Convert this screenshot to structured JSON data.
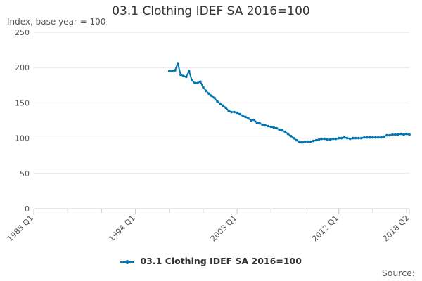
{
  "page": {
    "title": "03.1 Clothing IDEF SA 2016=100",
    "source_label": "Source:"
  },
  "colors": {
    "series": "#0075b0",
    "grid": "#e6e6e6",
    "axis": "#cccccc",
    "text": "#555555"
  },
  "chart_data": {
    "type": "line",
    "title": "03.1 Clothing IDEF SA 2016=100",
    "ylabel": "Index, base year = 100",
    "xlabel": "",
    "ylim": [
      0,
      250
    ],
    "yticks": [
      0,
      50,
      100,
      150,
      200,
      250
    ],
    "x_start": "1985 Q1",
    "x_end": "2018 Q2",
    "xticks": [
      "1985 Q1",
      "1994 Q1",
      "2003 Q1",
      "2012 Q1",
      "2018 Q2"
    ],
    "grid": true,
    "legend": "bottom-center",
    "series": [
      {
        "name": "03.1 Clothing IDEF SA 2016=100",
        "color": "#0075b0",
        "x": [
          "1997 Q1",
          "1997 Q2",
          "1997 Q3",
          "1997 Q4",
          "1998 Q1",
          "1998 Q2",
          "1998 Q3",
          "1998 Q4",
          "1999 Q1",
          "1999 Q2",
          "1999 Q3",
          "1999 Q4",
          "2000 Q1",
          "2000 Q2",
          "2000 Q3",
          "2000 Q4",
          "2001 Q1",
          "2001 Q2",
          "2001 Q3",
          "2001 Q4",
          "2002 Q1",
          "2002 Q2",
          "2002 Q3",
          "2002 Q4",
          "2003 Q1",
          "2003 Q2",
          "2003 Q3",
          "2003 Q4",
          "2004 Q1",
          "2004 Q2",
          "2004 Q3",
          "2004 Q4",
          "2005 Q1",
          "2005 Q2",
          "2005 Q3",
          "2005 Q4",
          "2006 Q1",
          "2006 Q2",
          "2006 Q3",
          "2006 Q4",
          "2007 Q1",
          "2007 Q2",
          "2007 Q3",
          "2007 Q4",
          "2008 Q1",
          "2008 Q2",
          "2008 Q3",
          "2008 Q4",
          "2009 Q1",
          "2009 Q2",
          "2009 Q3",
          "2009 Q4",
          "2010 Q1",
          "2010 Q2",
          "2010 Q3",
          "2010 Q4",
          "2011 Q1",
          "2011 Q2",
          "2011 Q3",
          "2011 Q4",
          "2012 Q1",
          "2012 Q2",
          "2012 Q3",
          "2012 Q4",
          "2013 Q1",
          "2013 Q2",
          "2013 Q3",
          "2013 Q4",
          "2014 Q1",
          "2014 Q2",
          "2014 Q3",
          "2014 Q4",
          "2015 Q1",
          "2015 Q2",
          "2015 Q3",
          "2015 Q4",
          "2016 Q1",
          "2016 Q2",
          "2016 Q3",
          "2016 Q4",
          "2017 Q1",
          "2017 Q2",
          "2017 Q3",
          "2017 Q4",
          "2018 Q1",
          "2018 Q2"
        ],
        "values": [
          195,
          195,
          196,
          206,
          190,
          188,
          187,
          195,
          182,
          178,
          178,
          180,
          172,
          167,
          163,
          160,
          157,
          152,
          149,
          146,
          143,
          139,
          137,
          137,
          136,
          134,
          132,
          130,
          128,
          125,
          126,
          122,
          121,
          119,
          118,
          117,
          116,
          115,
          114,
          112,
          111,
          109,
          106,
          103,
          100,
          97,
          95,
          94,
          95,
          95,
          95,
          96,
          97,
          98,
          99,
          99,
          98,
          98,
          99,
          99,
          100,
          100,
          101,
          100,
          99,
          100,
          100,
          100,
          100,
          101,
          101,
          101,
          101,
          101,
          101,
          101,
          102,
          104,
          104,
          105,
          105,
          105,
          106,
          105,
          106,
          105
        ]
      }
    ]
  }
}
